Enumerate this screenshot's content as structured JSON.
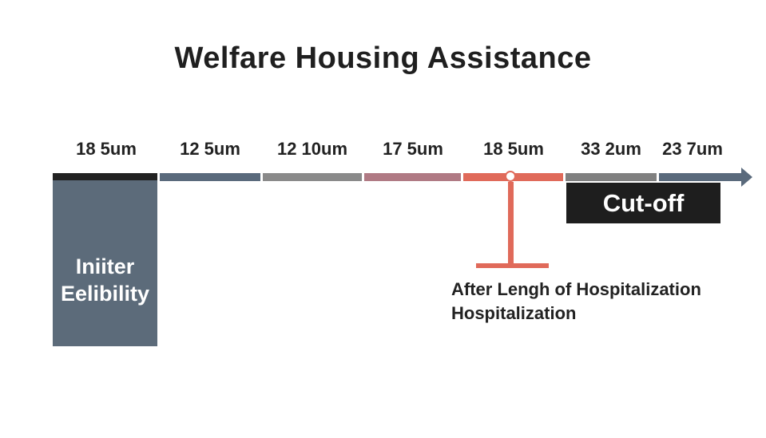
{
  "title": "Welfare Housing Assistance",
  "segments": [
    {
      "label": "18 5um",
      "color": "#222222"
    },
    {
      "label": "12 5um",
      "color": "#5a6a7c"
    },
    {
      "label": "12 10um",
      "color": "#8a8a8a"
    },
    {
      "label": "17 5um",
      "color": "#b07a84"
    },
    {
      "label": "18 5um",
      "color": "#e06a5a"
    },
    {
      "label": "33 2um",
      "color": "#808080"
    },
    {
      "label": "23 7um",
      "color": "#5a6a7c"
    }
  ],
  "eligibility_box": {
    "line1": "Iniiter",
    "line2": "Eelibility",
    "color": "#5c6b7a"
  },
  "cutoff_box": {
    "label": "Cut-off",
    "color": "#1e1e1e"
  },
  "marker": {
    "caption_line1": "After Lengh of Hospitalization",
    "caption_line2": "Hospitalization",
    "color": "#e06a5a"
  }
}
